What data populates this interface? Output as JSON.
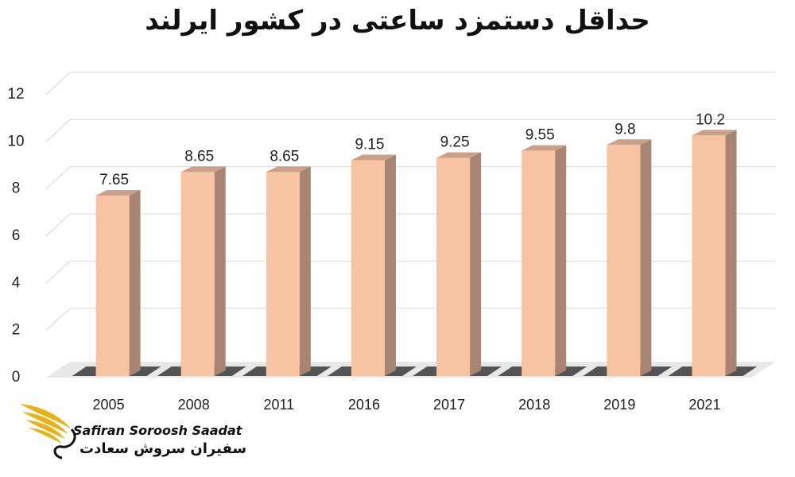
{
  "chart_data": {
    "type": "bar",
    "title": "حداقل دستمزد ساعتی در کشور ایرلند",
    "categories": [
      "2005",
      "2008",
      "2011",
      "2016",
      "2017",
      "2018",
      "2019",
      "2021"
    ],
    "values": [
      7.65,
      8.65,
      8.65,
      9.15,
      9.25,
      9.55,
      9.8,
      10.2
    ],
    "data_labels": [
      "7.65",
      "8.65",
      "8.65",
      "9.15",
      "9.25",
      "9.55",
      "9.8",
      "10.2"
    ],
    "yticks": [
      "0",
      "2",
      "4",
      "6",
      "8",
      "10",
      "12"
    ],
    "ylim": [
      0,
      12
    ],
    "xlabel": "",
    "ylabel": "",
    "grid": true,
    "style": "3d-column",
    "colors": {
      "bar_front": "#F7C4A3",
      "bar_side": "#A98472",
      "bar_top": "#C9A08A",
      "floor": "#3a3a3a",
      "grid": "#d9d9d9"
    }
  },
  "watermark": {
    "brand_en": "Safiran Soroosh Saadat",
    "brand_fa": "سفیران سروش سعادت",
    "colors": {
      "gold": "#E8B21A",
      "dark": "#111111"
    }
  }
}
